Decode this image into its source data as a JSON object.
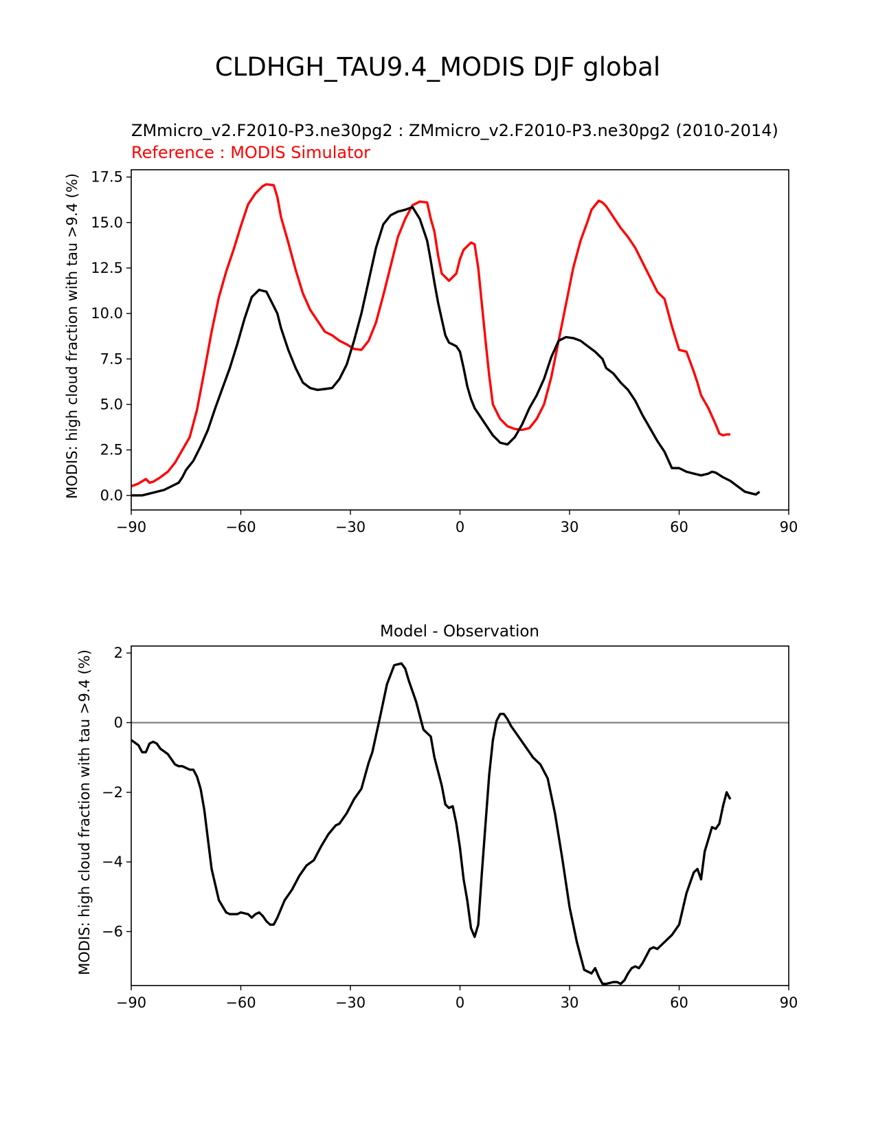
{
  "figure": {
    "suptitle": "CLDHGH_TAU9.4_MODIS DJF global"
  },
  "colors": {
    "model": "#000000",
    "reference": "#ff0000",
    "zero_line": "#808080",
    "axes": "#000000"
  },
  "chart_data": [
    {
      "type": "line",
      "title_line1": "ZMmicro_v2.F2010-P3.ne30pg2 : ZMmicro_v2.F2010-P3.ne30pg2 (2010-2014)",
      "title_line2": "Reference : MODIS Simulator",
      "xlabel": "",
      "ylabel": "MODIS: high cloud fraction with tau >9.4 (%)",
      "xlim": [
        -90,
        90
      ],
      "ylim": [
        -0.8,
        17.9
      ],
      "xticks": [
        -90,
        -60,
        -30,
        0,
        30,
        60,
        90
      ],
      "xtick_labels": [
        "−90",
        "−60",
        "−30",
        "0",
        "30",
        "60",
        "90"
      ],
      "yticks": [
        0,
        2.5,
        5,
        7.5,
        10,
        12.5,
        15,
        17.5
      ],
      "ytick_labels": [
        "0.0",
        "2.5",
        "5.0",
        "7.5",
        "10.0",
        "12.5",
        "15.0",
        "17.5"
      ],
      "grid": false,
      "series": [
        {
          "role": "reference",
          "x": [
            -90,
            -88,
            -86,
            -85,
            -84,
            -82,
            -80,
            -78,
            -76,
            -74,
            -72,
            -70,
            -68,
            -66,
            -64,
            -62,
            -60,
            -58,
            -56,
            -54,
            -53,
            -51,
            -50,
            -49,
            -47,
            -45,
            -43,
            -41,
            -39,
            -37,
            -35,
            -33,
            -31,
            -29,
            -27,
            -25,
            -23,
            -21,
            -19,
            -17,
            -15,
            -13,
            -11,
            -9,
            -8,
            -7,
            -6,
            -5,
            -3,
            -1,
            0,
            1,
            3,
            4,
            5,
            6,
            7,
            8,
            9,
            11,
            13,
            15,
            17,
            19,
            21,
            23,
            25,
            27,
            29,
            31,
            33,
            35,
            36,
            38,
            39,
            40,
            42,
            44,
            46,
            48,
            50,
            52,
            54,
            56,
            58,
            60,
            62,
            64,
            65,
            66,
            68,
            70,
            71,
            72,
            73,
            74
          ],
          "y": [
            0.5,
            0.65,
            0.9,
            0.7,
            0.75,
            1.0,
            1.3,
            1.8,
            2.5,
            3.2,
            4.7,
            6.8,
            9.0,
            10.9,
            12.3,
            13.5,
            14.8,
            16.0,
            16.6,
            17.0,
            17.1,
            17.05,
            16.4,
            15.3,
            13.9,
            12.4,
            11.1,
            10.2,
            9.6,
            9.0,
            8.8,
            8.5,
            8.3,
            8.05,
            8.0,
            8.5,
            9.5,
            11.0,
            12.6,
            14.2,
            15.2,
            15.95,
            16.15,
            16.1,
            15.2,
            14.5,
            13.2,
            12.2,
            11.8,
            12.2,
            13.0,
            13.5,
            13.9,
            13.8,
            12.5,
            10.5,
            8.5,
            6.6,
            5.0,
            4.2,
            3.8,
            3.65,
            3.6,
            3.7,
            4.2,
            5.0,
            6.5,
            8.5,
            10.5,
            12.5,
            14.0,
            15.1,
            15.7,
            16.2,
            16.1,
            15.9,
            15.3,
            14.7,
            14.2,
            13.6,
            12.8,
            12.0,
            11.2,
            10.8,
            9.3,
            8.0,
            7.9,
            6.8,
            6.2,
            5.5,
            4.8,
            3.9,
            3.4,
            3.3,
            3.35,
            3.35
          ]
        },
        {
          "role": "model",
          "x": [
            -90,
            -87,
            -85,
            -83,
            -81,
            -79,
            -77,
            -76,
            -75,
            -73,
            -71,
            -69,
            -67,
            -65,
            -63,
            -61,
            -59,
            -57,
            -55,
            -53,
            -52,
            -50,
            -49,
            -47,
            -45,
            -43,
            -41,
            -39,
            -37,
            -35,
            -33,
            -31,
            -29,
            -27,
            -25,
            -23,
            -21,
            -19,
            -17,
            -15,
            -13,
            -11,
            -9,
            -8,
            -7,
            -6,
            -5,
            -4,
            -3,
            -2,
            -1,
            0,
            1,
            2,
            3,
            4,
            5,
            7,
            9,
            11,
            13,
            15,
            17,
            19,
            21,
            23,
            25,
            27,
            29,
            31,
            33,
            35,
            37,
            38,
            39,
            40,
            42,
            44,
            46,
            48,
            50,
            52,
            54,
            56,
            58,
            60,
            62,
            64,
            66,
            68,
            69,
            70,
            72,
            74,
            76,
            78,
            80,
            81,
            82
          ],
          "y": [
            0.0,
            0.0,
            0.1,
            0.2,
            0.3,
            0.5,
            0.7,
            1.0,
            1.4,
            1.9,
            2.7,
            3.6,
            4.8,
            5.9,
            7.0,
            8.3,
            9.7,
            10.9,
            11.3,
            11.2,
            10.8,
            10.0,
            9.2,
            8.0,
            7.0,
            6.2,
            5.9,
            5.8,
            5.85,
            5.9,
            6.4,
            7.2,
            8.5,
            10.0,
            11.8,
            13.6,
            14.9,
            15.4,
            15.6,
            15.7,
            15.85,
            15.2,
            14.0,
            12.9,
            11.7,
            10.6,
            9.7,
            8.8,
            8.4,
            8.3,
            8.2,
            7.9,
            7.0,
            6.0,
            5.3,
            4.8,
            4.5,
            3.9,
            3.3,
            2.9,
            2.8,
            3.2,
            3.9,
            4.8,
            5.5,
            6.4,
            7.6,
            8.5,
            8.7,
            8.65,
            8.5,
            8.2,
            7.9,
            7.7,
            7.5,
            7.0,
            6.7,
            6.2,
            5.8,
            5.2,
            4.4,
            3.7,
            3.0,
            2.4,
            1.5,
            1.5,
            1.3,
            1.2,
            1.1,
            1.2,
            1.3,
            1.25,
            1.0,
            0.8,
            0.5,
            0.2,
            0.1,
            0.05,
            0.2
          ]
        }
      ]
    },
    {
      "type": "line",
      "title": "Model - Observation",
      "xlabel": "",
      "ylabel": "MODIS: high cloud fraction with tau >9.4 (%)",
      "xlim": [
        -90,
        90
      ],
      "ylim": [
        -7.55,
        2.2
      ],
      "xticks": [
        -90,
        -60,
        -30,
        0,
        30,
        60,
        90
      ],
      "xtick_labels": [
        "−90",
        "−60",
        "−30",
        "0",
        "30",
        "60",
        "90"
      ],
      "yticks": [
        -6,
        -4,
        -2,
        0,
        2
      ],
      "ytick_labels": [
        "−6",
        "−4",
        "−2",
        "0",
        "2"
      ],
      "grid": false,
      "zero_line": true,
      "series": [
        {
          "role": "difference",
          "x": [
            -90,
            -88,
            -87,
            -86,
            -85,
            -84,
            -83,
            -82,
            -80,
            -78,
            -77,
            -76,
            -74,
            -73,
            -72,
            -71,
            -70,
            -68,
            -66,
            -64,
            -63,
            -62,
            -61,
            -60,
            -58,
            -57,
            -56,
            -55,
            -54,
            -53,
            -52,
            -51,
            -50,
            -49,
            -48,
            -46,
            -44,
            -42,
            -40,
            -38,
            -36,
            -34,
            -33,
            -31,
            -29,
            -27,
            -25,
            -24,
            -22,
            -20,
            -18,
            -16,
            -15,
            -14,
            -12,
            -10,
            -9,
            -8,
            -7,
            -5,
            -4,
            -3,
            -2,
            -1,
            0,
            1,
            2,
            3,
            4,
            5,
            6,
            7,
            8,
            9,
            10,
            11,
            12,
            13,
            14,
            16,
            18,
            20,
            22,
            24,
            26,
            28,
            30,
            32,
            34,
            36,
            37,
            38,
            39,
            40,
            42,
            43,
            44,
            45,
            46,
            47,
            48,
            49,
            50,
            52,
            53,
            54,
            56,
            57,
            58,
            60,
            62,
            64,
            65,
            66,
            67,
            68,
            69,
            70,
            71,
            72,
            73,
            74
          ],
          "y": [
            -0.5,
            -0.65,
            -0.85,
            -0.85,
            -0.6,
            -0.55,
            -0.6,
            -0.75,
            -0.9,
            -1.2,
            -1.25,
            -1.25,
            -1.35,
            -1.35,
            -1.55,
            -1.9,
            -2.5,
            -4.2,
            -5.1,
            -5.45,
            -5.5,
            -5.5,
            -5.5,
            -5.45,
            -5.5,
            -5.6,
            -5.5,
            -5.45,
            -5.55,
            -5.7,
            -5.8,
            -5.8,
            -5.6,
            -5.35,
            -5.1,
            -4.8,
            -4.4,
            -4.1,
            -3.95,
            -3.55,
            -3.2,
            -2.95,
            -2.9,
            -2.6,
            -2.2,
            -1.9,
            -1.15,
            -0.85,
            0.1,
            1.1,
            1.65,
            1.7,
            1.55,
            1.2,
            0.6,
            -0.2,
            -0.3,
            -0.4,
            -1.0,
            -1.8,
            -2.35,
            -2.45,
            -2.4,
            -2.9,
            -3.6,
            -4.5,
            -5.1,
            -5.9,
            -6.15,
            -5.8,
            -4.3,
            -2.9,
            -1.5,
            -0.5,
            0.05,
            0.25,
            0.25,
            0.1,
            -0.1,
            -0.4,
            -0.7,
            -1.0,
            -1.2,
            -1.6,
            -2.6,
            -3.9,
            -5.3,
            -6.3,
            -7.1,
            -7.2,
            -7.05,
            -7.3,
            -7.5,
            -7.5,
            -7.45,
            -7.45,
            -7.5,
            -7.4,
            -7.2,
            -7.05,
            -7.0,
            -7.05,
            -6.9,
            -6.5,
            -6.45,
            -6.5,
            -6.3,
            -6.2,
            -6.1,
            -5.8,
            -4.9,
            -4.3,
            -4.2,
            -4.5,
            -3.7,
            -3.35,
            -3.0,
            -3.05,
            -2.9,
            -2.4,
            -2.0,
            -2.2
          ]
        }
      ]
    }
  ]
}
